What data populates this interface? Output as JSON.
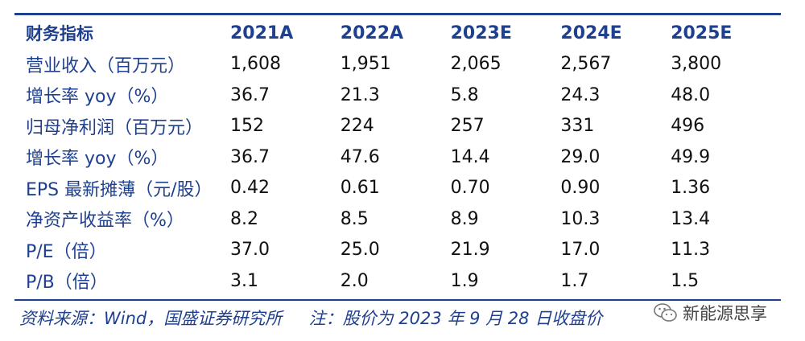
{
  "table": {
    "header": [
      "财务指标",
      "2021A",
      "2022A",
      "2023E",
      "2024E",
      "2025E"
    ],
    "rows": [
      {
        "label": "营业收入（百万元）",
        "values": [
          "1,608",
          "1,951",
          "2,065",
          "2,567",
          "3,800"
        ]
      },
      {
        "label": "增长率 yoy（%）",
        "values": [
          "36.7",
          "21.3",
          "5.8",
          "24.3",
          "48.0"
        ]
      },
      {
        "label": "归母净利润（百万元）",
        "values": [
          "152",
          "224",
          "257",
          "331",
          "496"
        ]
      },
      {
        "label": "增长率 yoy（%）",
        "values": [
          "36.7",
          "47.6",
          "14.4",
          "29.0",
          "49.9"
        ]
      },
      {
        "label": "EPS 最新摊薄（元/股）",
        "values": [
          "0.42",
          "0.61",
          "0.70",
          "0.90",
          "1.36"
        ]
      },
      {
        "label": "净资产收益率（%）",
        "values": [
          "8.2",
          "8.5",
          "8.9",
          "10.3",
          "13.4"
        ]
      },
      {
        "label": "P/E（倍）",
        "values": [
          "37.0",
          "25.0",
          "21.9",
          "17.0",
          "11.3"
        ]
      },
      {
        "label": "P/B（倍）",
        "values": [
          "3.1",
          "2.0",
          "1.9",
          "1.7",
          "1.5"
        ]
      }
    ]
  },
  "footer": {
    "source": "资料来源：Wind，国盛证券研究所",
    "note": "注：股价为 2023 年 9 月 28 日收盘价"
  },
  "watermark": {
    "text": "新能源思享",
    "icon": "wechat-icon"
  },
  "colors": {
    "accent": "#1f3f8f",
    "text": "#111111"
  }
}
